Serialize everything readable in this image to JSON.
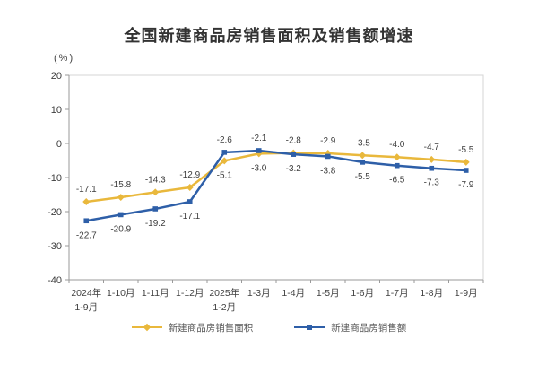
{
  "chart_data": {
    "type": "line",
    "title": "全国新建商品房销售面积及销售额增速",
    "unit_label": "(%)",
    "categories": [
      "2024年\n1-9月",
      "1-10月",
      "1-11月",
      "1-12月",
      "2025年\n1-2月",
      "1-3月",
      "1-4月",
      "1-5月",
      "1-6月",
      "1-7月",
      "1-8月",
      "1-9月"
    ],
    "series": [
      {
        "name": "新建商品房销售面积",
        "color": "#E9B83C",
        "marker": "diamond",
        "values": [
          -17.1,
          -15.8,
          -14.3,
          -12.9,
          -5.1,
          -3.0,
          -2.8,
          -2.9,
          -3.5,
          -4.0,
          -4.7,
          -5.5
        ],
        "label_positions": [
          "above",
          "above",
          "above",
          "above",
          "below",
          "below",
          "above",
          "above",
          "above",
          "above",
          "above",
          "above"
        ]
      },
      {
        "name": "新建商品房销售额",
        "color": "#2E5FA8",
        "marker": "square",
        "values": [
          -22.7,
          -20.9,
          -19.2,
          -17.1,
          -2.6,
          -2.1,
          -3.2,
          -3.8,
          -5.5,
          -6.5,
          -7.3,
          -7.9
        ],
        "label_positions": [
          "below",
          "below",
          "below",
          "below",
          "above",
          "above",
          "below",
          "below",
          "below",
          "below",
          "below",
          "below"
        ]
      }
    ],
    "y_ticks": [
      20,
      10,
      0,
      -10,
      -20,
      -30,
      -40
    ],
    "ylim": [
      -40,
      20
    ],
    "grid": false,
    "legend_position": "bottom",
    "colors": {
      "axis": "#9a9a9a",
      "plot_border": "#d5d5d5",
      "title_text": "#333333",
      "axis_text": "#404040",
      "data_label_text": "#3d3d3d",
      "legend_text": "#595959"
    }
  }
}
